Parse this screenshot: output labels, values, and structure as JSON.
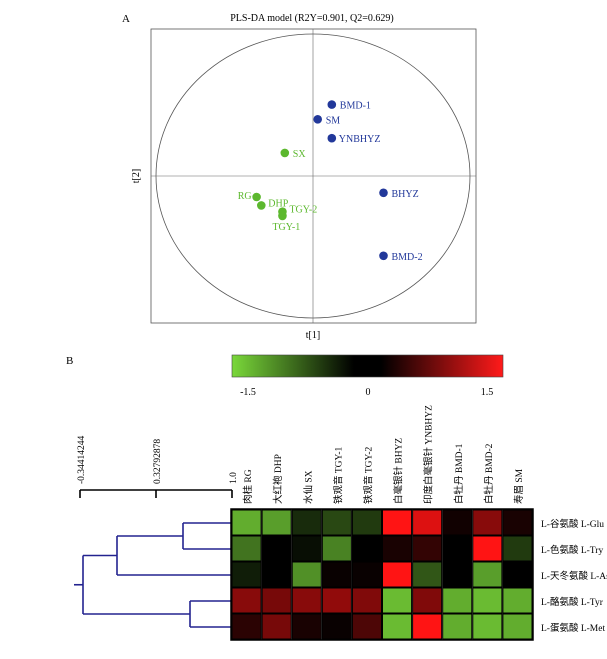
{
  "panels": {
    "a_label": "A",
    "b_label": "B"
  },
  "chart_data": [
    {
      "type": "scatter",
      "title": "PLS-DA model (R2Y=0.901, Q2=0.629)",
      "xlabel": "t[1]",
      "ylabel": "t[2]",
      "ellipse": "Hotelling T2",
      "colors": {
        "green": "#5cb82e",
        "blue": "#22389a"
      },
      "points": [
        {
          "label": "BMD-1",
          "x": 0.4,
          "y": 1.7,
          "group": "blue"
        },
        {
          "label": "SM",
          "x": 0.1,
          "y": 1.35,
          "group": "blue"
        },
        {
          "label": "YNBHYZ",
          "x": 0.4,
          "y": 0.9,
          "group": "blue"
        },
        {
          "label": "SX",
          "x": -0.6,
          "y": 0.55,
          "group": "green"
        },
        {
          "label": "BHYZ",
          "x": 1.5,
          "y": -0.4,
          "group": "blue"
        },
        {
          "label": "RG",
          "x": -1.2,
          "y": -0.5,
          "group": "green"
        },
        {
          "label": "DHP",
          "x": -1.1,
          "y": -0.7,
          "group": "green"
        },
        {
          "label": "TGY-2",
          "x": -0.65,
          "y": -0.85,
          "group": "green"
        },
        {
          "label": "TGY-1",
          "x": -0.65,
          "y": -0.95,
          "group": "green"
        },
        {
          "label": "BMD-2",
          "x": 1.5,
          "y": -1.9,
          "group": "blue"
        }
      ]
    },
    {
      "type": "heatmap",
      "colorbar": {
        "ticks": [
          "-1.5",
          "0",
          "1.5"
        ],
        "range": [
          -1.5,
          1.5
        ]
      },
      "dendrogram": {
        "tick_labels": [
          "-0.34414244",
          "0.32792878",
          "1.0"
        ]
      },
      "columns": [
        "肉桂 RG",
        "大红袍 DHP",
        "水仙 SX",
        "铁观音 TGY-1",
        "铁观音 TGY-2",
        "白毫银针 BHYZ",
        "印度白毫银针 YNBHYZ",
        "白牡丹 BMD-1",
        "白牡丹 BMD-2",
        "寿眉 SM"
      ],
      "rows": [
        "L-谷氨酸 L-Glu",
        "L-色氨酸 L-Try",
        "L-天冬氨酸 L-Asp",
        "L-酪氨酸 L-Tyr",
        "L-蛋氨酸 L-Met"
      ],
      "values": [
        [
          -1.2,
          -1.1,
          -0.3,
          -0.5,
          -0.4,
          1.6,
          1.3,
          0.1,
          0.8,
          0.15
        ],
        [
          -0.8,
          0.0,
          -0.1,
          -0.9,
          0.0,
          0.15,
          0.3,
          0.0,
          1.6,
          -0.4
        ],
        [
          -0.2,
          0.0,
          -1.0,
          0.05,
          0.05,
          1.6,
          -0.6,
          0.0,
          -1.1,
          0.0
        ],
        [
          0.8,
          0.7,
          0.8,
          0.85,
          0.75,
          -1.3,
          0.75,
          -1.2,
          -1.3,
          -1.2
        ],
        [
          0.25,
          0.7,
          0.15,
          0.05,
          0.45,
          -1.3,
          1.6,
          -1.2,
          -1.3,
          -1.2
        ]
      ]
    }
  ]
}
